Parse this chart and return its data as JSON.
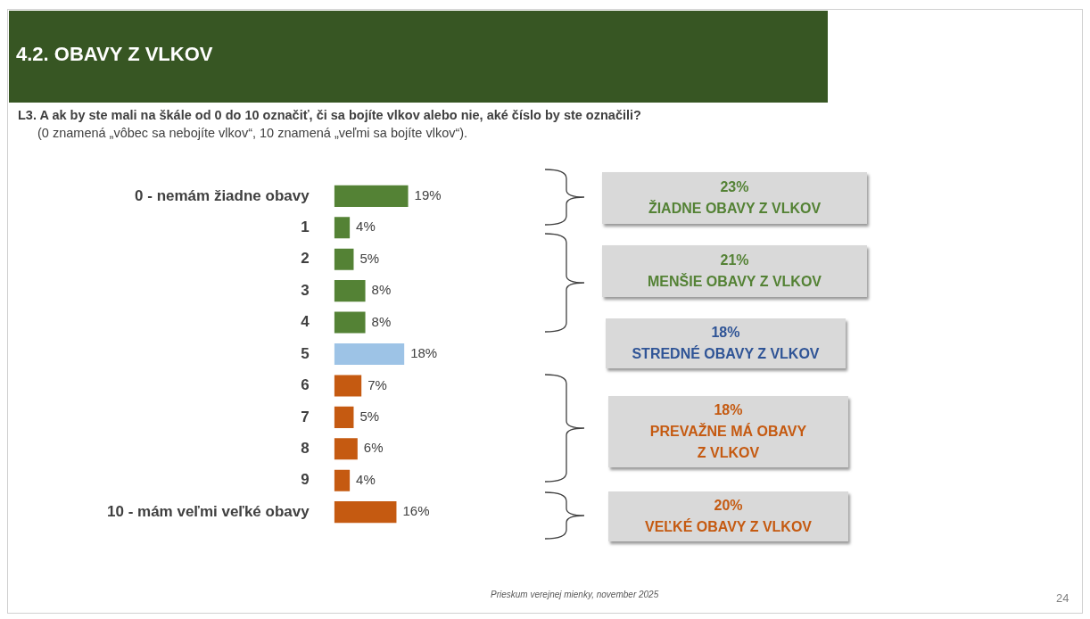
{
  "chart_data": {
    "type": "bar",
    "orientation": "horizontal",
    "title": "4.2. OBAVY Z VLKOV",
    "subtitle": "L3. A ak by ste mali na škále od 0 do 10 označiť, či sa bojíte vlkov alebo nie, aké číslo by ste označili?",
    "categories": [
      "0 - nemám žiadne obavy",
      "1",
      "2",
      "3",
      "4",
      "5",
      "6",
      "7",
      "8",
      "9",
      "10 - mám veľmi veľké obavy"
    ],
    "values": [
      19,
      4,
      5,
      8,
      8,
      18,
      7,
      5,
      6,
      4,
      16
    ],
    "colors": [
      "#548235",
      "#548235",
      "#548235",
      "#548235",
      "#548235",
      "#9dc3e6",
      "#c55a11",
      "#c55a11",
      "#c55a11",
      "#c55a11",
      "#c55a11"
    ],
    "value_labels": [
      "19%",
      "4%",
      "5%",
      "8%",
      "8%",
      "18%",
      "7%",
      "5%",
      "6%",
      "4%",
      "16%"
    ],
    "legend": false,
    "annotations": [
      "(0 znamená „vôbec sa nebojíte vlkov“, 10 znamená „veľmi sa bojíte vlkov“).",
      "23%\nŽIADNE OBAVY Z VLKOV",
      "21%\nMENŠIE OBAVY Z VLKOV",
      "18%\nSTREDNÉ OBAVY Z VLKOV",
      "18%\nPREVAŽNE MÁ OBAVY\nZ VLKOV",
      "20%\nVEĽKÉ OBAVY Z VLKOV",
      "Prieskum verejnej mienky, november 2025",
      "24"
    ]
  }
}
